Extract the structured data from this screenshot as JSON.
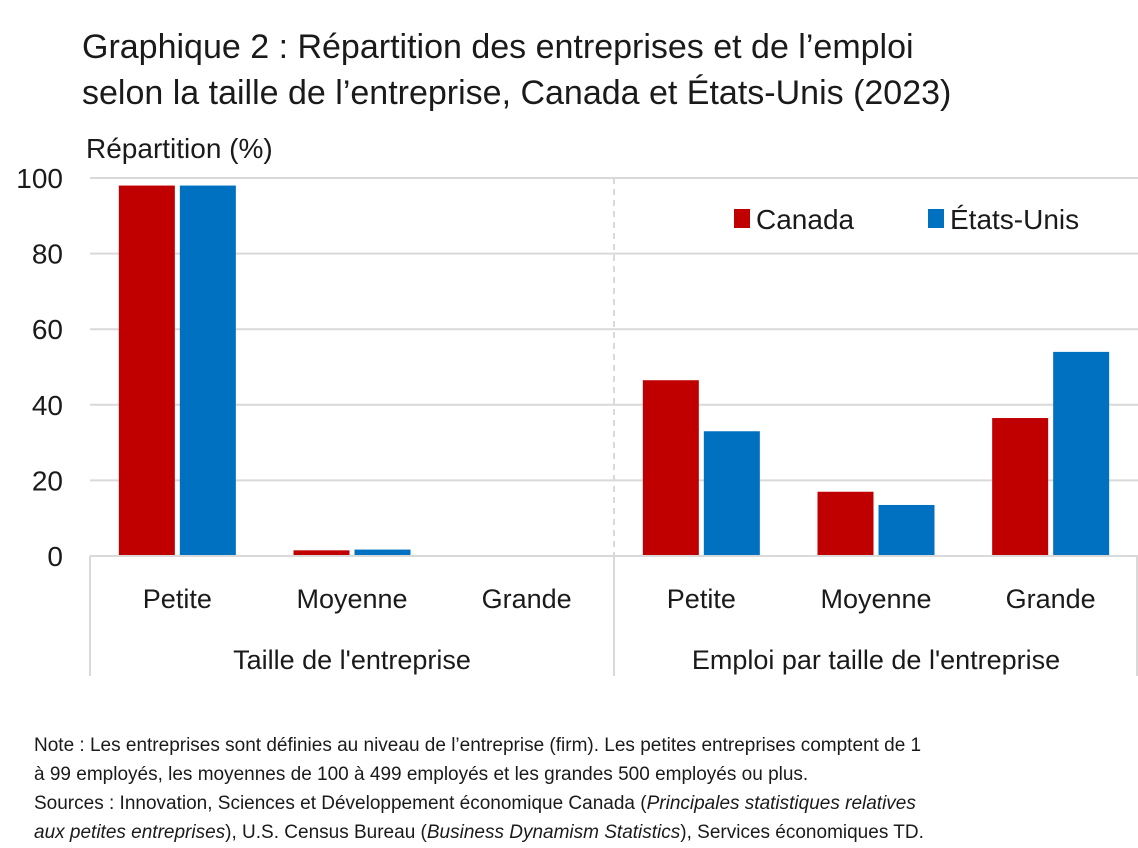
{
  "title_line1": "Graphique 2 : Répartition des entreprises et de l’emploi",
  "title_line2": "selon la taille de l’entreprise, Canada et États-Unis (2023)",
  "colors": {
    "Canada": "#c00000",
    "États-Unis": "#0070c0",
    "grid": "#d9d9d9"
  },
  "chart_data": {
    "type": "bar",
    "ylabel": "Répartition (%)",
    "ylim": [
      0,
      100
    ],
    "yticks": [
      0,
      20,
      40,
      60,
      80,
      100
    ],
    "grid": true,
    "legend_position": "top-right",
    "groups": [
      {
        "label": "Taille de l'entreprise",
        "categories": [
          "Petite",
          "Moyenne",
          "Grande"
        ]
      },
      {
        "label": "Emploi par taille de l'entreprise",
        "categories": [
          "Petite",
          "Moyenne",
          "Grande"
        ]
      }
    ],
    "series": [
      {
        "name": "Canada",
        "values": [
          98,
          1.5,
          0.1,
          46.5,
          17,
          36.5
        ]
      },
      {
        "name": "États-Unis",
        "values": [
          98,
          1.7,
          0.2,
          33,
          13.5,
          54
        ]
      }
    ]
  },
  "notes": {
    "line1": "Note : Les entreprises sont définies au niveau de l’entreprise (firm). Les petites entreprises comptent de 1",
    "line2": "à 99 employés, les moyennes de 100 à 499 employés et les grandes 500 employés ou plus.",
    "line3_a": "Sources : Innovation, Sciences et Développement économique Canada (",
    "line3_b": "Principales statistiques relatives",
    "line4_a": "aux petites entreprises",
    "line4_b": "), U.S. Census Bureau (",
    "line4_c": "Business Dynamism Statistics",
    "line4_d": "), Services économiques TD."
  }
}
